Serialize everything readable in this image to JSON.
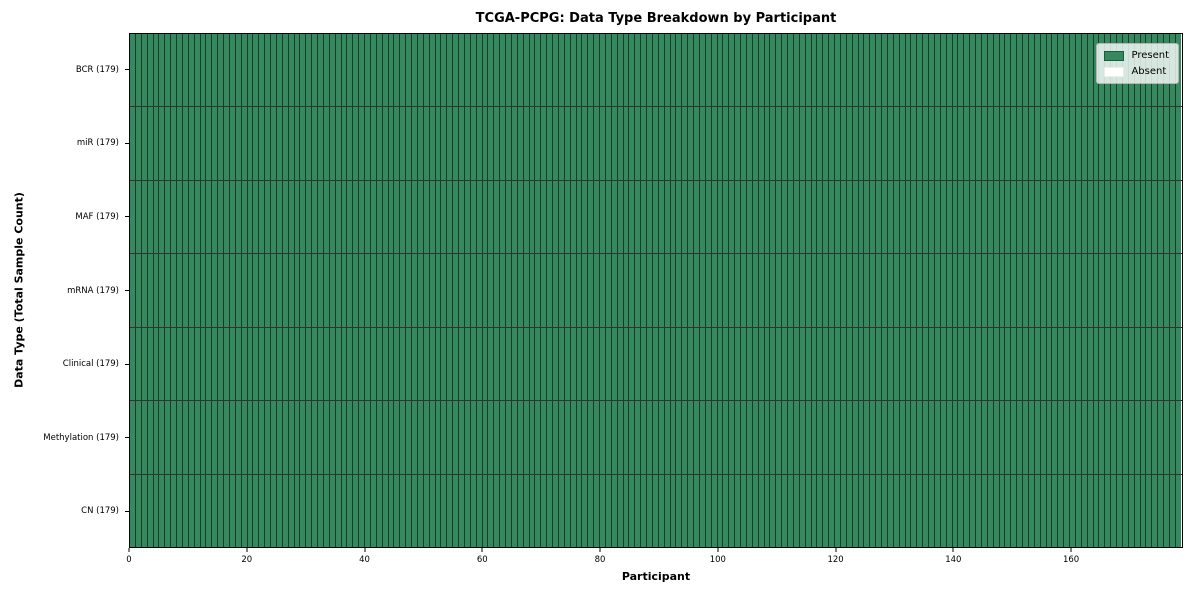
{
  "chart_data": {
    "type": "heatmap",
    "title": "TCGA-PCPG: Data Type Breakdown by Participant",
    "xlabel": "Participant",
    "ylabel": "Data Type (Total Sample Count)",
    "xlim": [
      0,
      179
    ],
    "n_participants": 179,
    "x_ticks": [
      0,
      20,
      40,
      60,
      80,
      100,
      120,
      140,
      160
    ],
    "rows": [
      {
        "label": "BCR (179)",
        "data_type": "BCR",
        "total_samples": 179,
        "present_count": 179,
        "absent_count": 0
      },
      {
        "label": "miR (179)",
        "data_type": "miR",
        "total_samples": 179,
        "present_count": 179,
        "absent_count": 0
      },
      {
        "label": "MAF (179)",
        "data_type": "MAF",
        "total_samples": 179,
        "present_count": 179,
        "absent_count": 0
      },
      {
        "label": "mRNA (179)",
        "data_type": "mRNA",
        "total_samples": 179,
        "present_count": 179,
        "absent_count": 0
      },
      {
        "label": "Clinical (179)",
        "data_type": "Clinical",
        "total_samples": 179,
        "present_count": 179,
        "absent_count": 0
      },
      {
        "label": "Methylation (179)",
        "data_type": "Methylation",
        "total_samples": 179,
        "present_count": 179,
        "absent_count": 0
      },
      {
        "label": "CN (179)",
        "data_type": "CN",
        "total_samples": 179,
        "present_count": 179,
        "absent_count": 0
      }
    ],
    "legend": {
      "position": "upper-right",
      "items": [
        {
          "label": "Present",
          "color": "#36895e"
        },
        {
          "label": "Absent",
          "color": "#ffffff"
        }
      ]
    },
    "colors": {
      "present": "#36895e",
      "absent": "#ffffff",
      "cell_separator": "rgba(0,0,0,0.55)",
      "row_separator": "rgba(0,0,0,0.8)",
      "frame": "#000000"
    },
    "grid": "cell-borders-on"
  }
}
